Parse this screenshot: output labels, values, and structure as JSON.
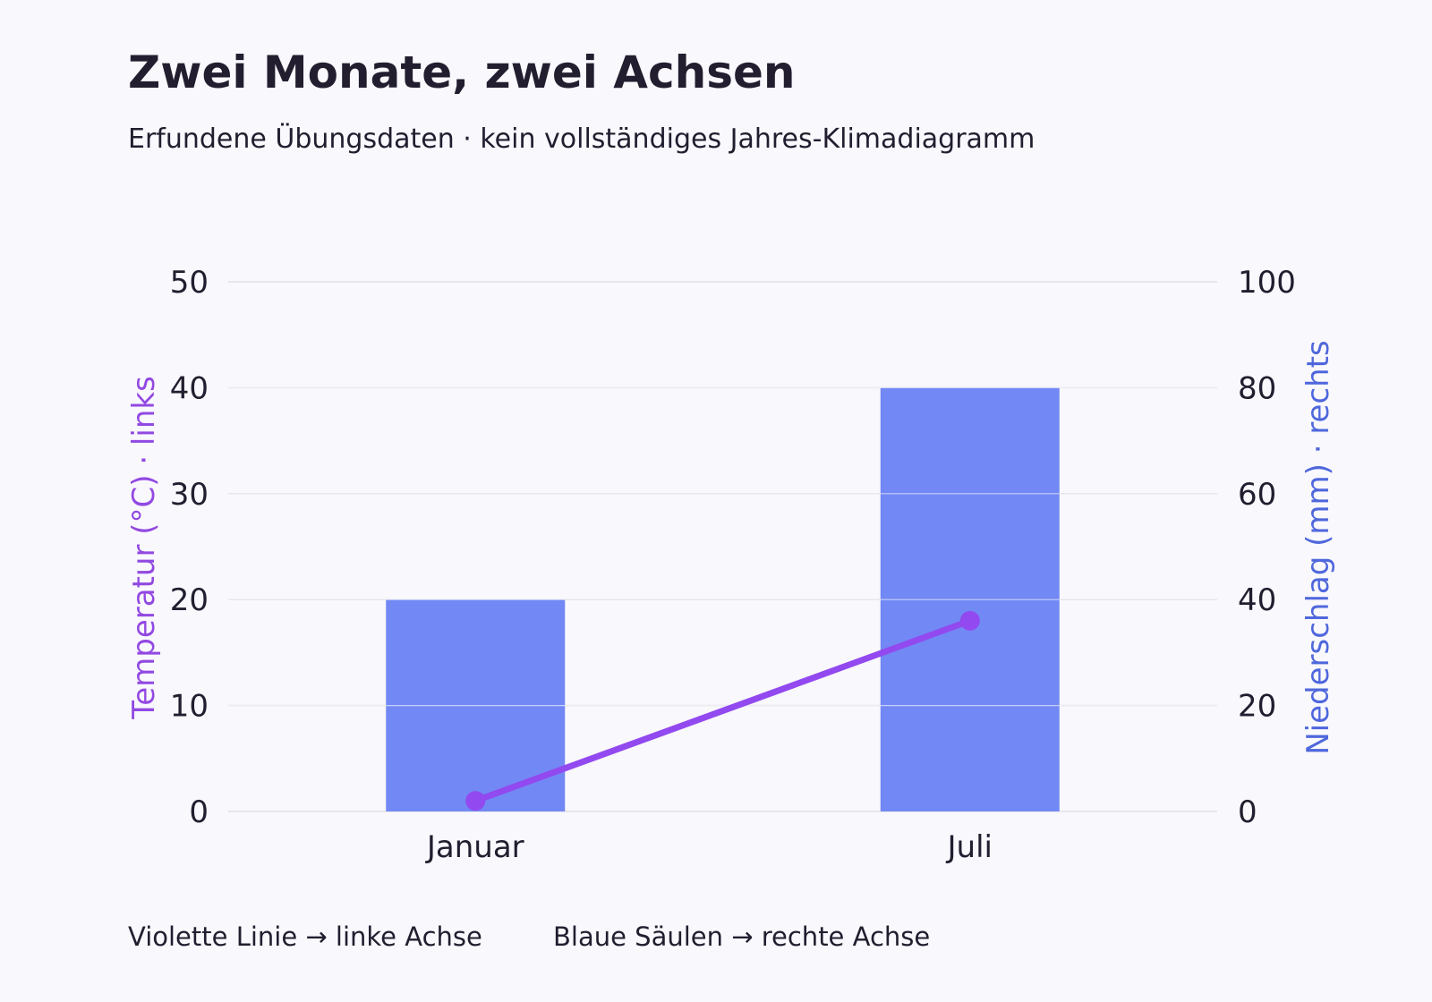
{
  "colors": {
    "background": "#f9f8fd",
    "text": "#221e2f",
    "grid": "#d6d4dc",
    "bar": "#7288f4",
    "line": "#9249ef",
    "left_axis_label": "#9249e2",
    "right_axis_label": "#4f67dc"
  },
  "chart_data": {
    "type": "bar+line",
    "title": "Zwei Monate, zwei Achsen",
    "subtitle": "Erfundene Übungsdaten · kein vollständiges Jahres-Klimadiagramm",
    "categories": [
      "Januar",
      "Juli"
    ],
    "y_left": {
      "label": "Temperatur (°C) · links",
      "range": [
        0,
        50
      ],
      "ticks": [
        "0",
        "10",
        "20",
        "30",
        "40",
        "50"
      ]
    },
    "y_right": {
      "label": "Niederschlag (mm) · rechts",
      "range": [
        0,
        100
      ],
      "ticks": [
        "0",
        "20",
        "40",
        "60",
        "80",
        "100"
      ]
    },
    "series": [
      {
        "type": "bar",
        "axis": "right",
        "values": [
          40,
          80
        ]
      },
      {
        "type": "line",
        "axis": "left",
        "values": [
          1,
          18
        ]
      }
    ],
    "grid": true,
    "notes": [
      "Violette Linie → linke Achse",
      "Blaue Säulen → rechte Achse"
    ]
  }
}
